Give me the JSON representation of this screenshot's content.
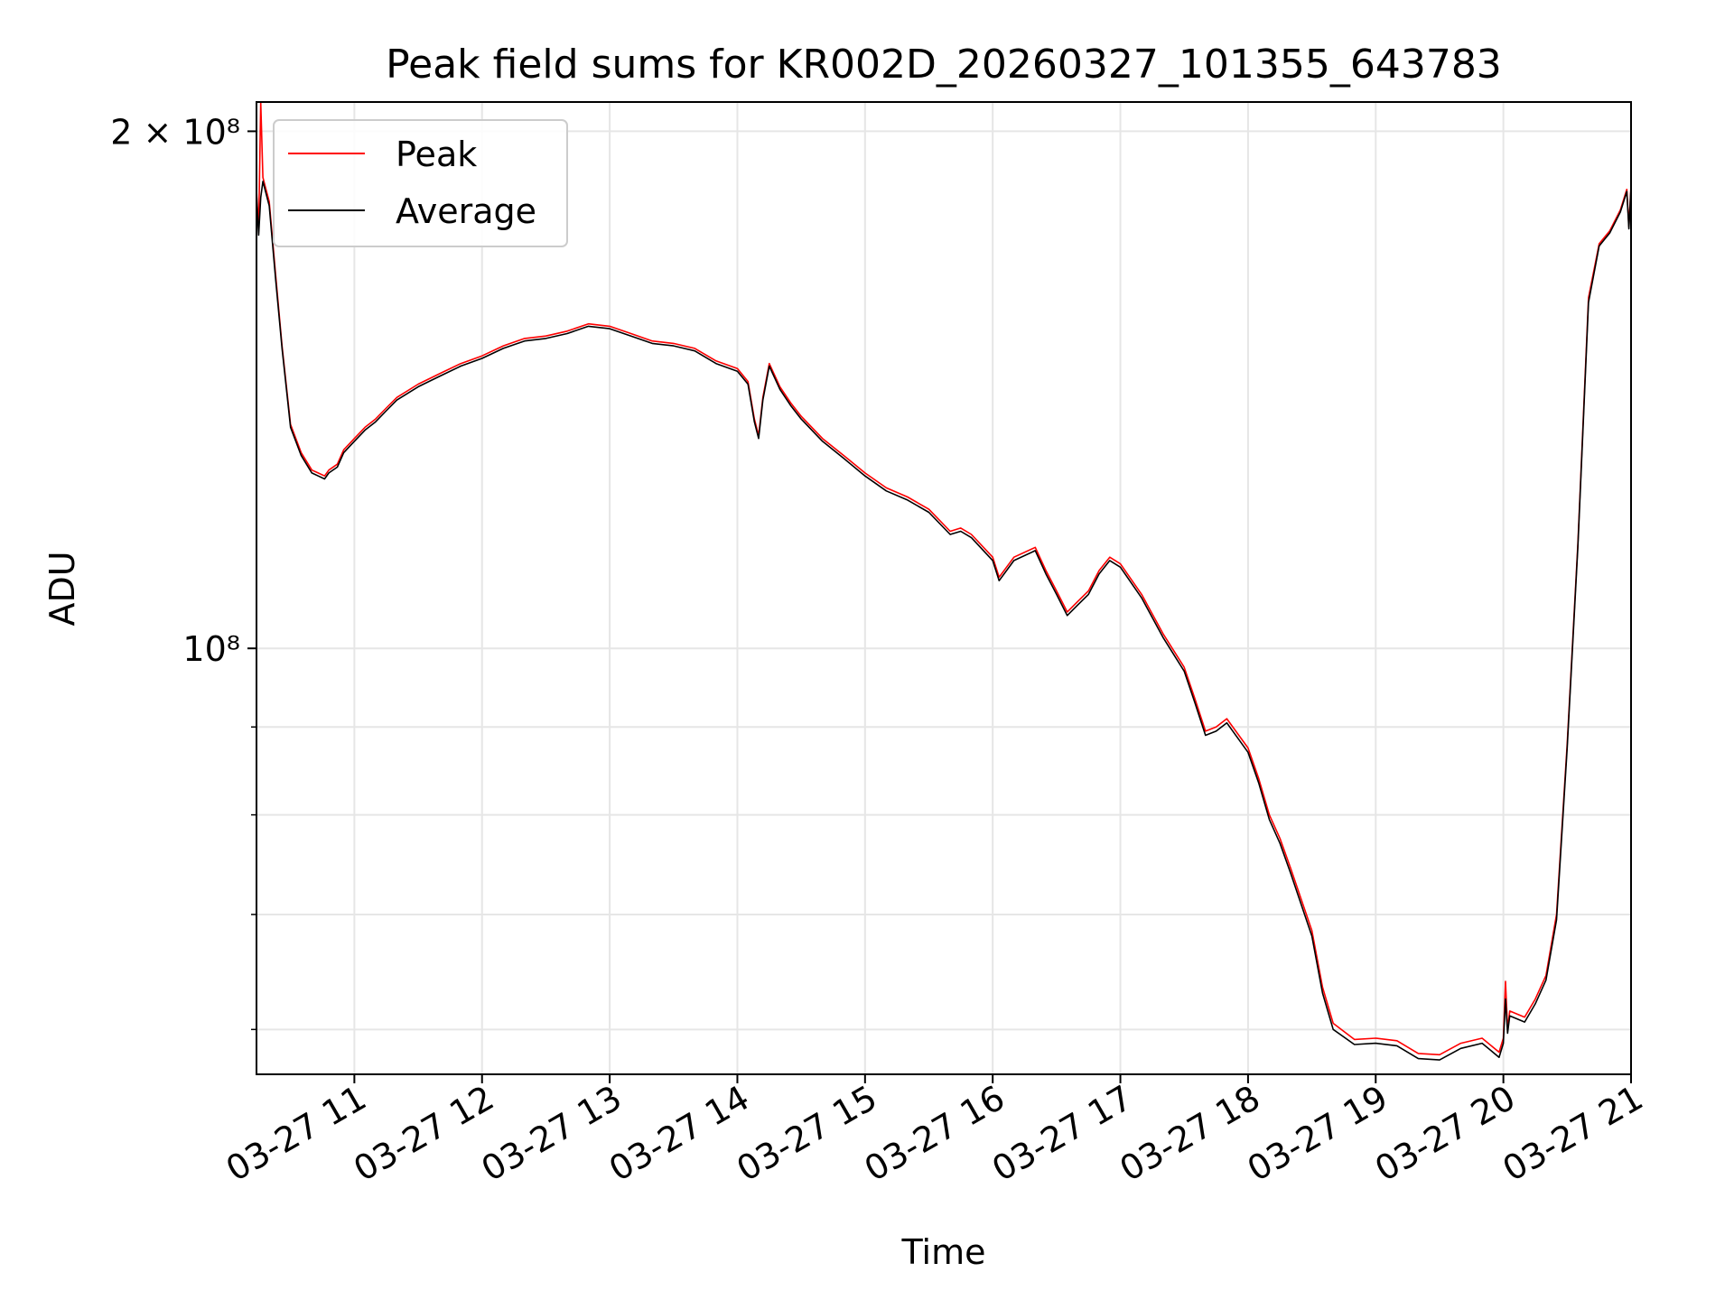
{
  "chart_data": {
    "type": "line",
    "title": "Peak field sums for KR002D_20260327_101355_643783",
    "xlabel": "Time",
    "ylabel": "ADU",
    "yscale": "log",
    "grid": true,
    "legend_placement": "top-left",
    "xlim": [
      "2026-03-27 10:14",
      "2026-03-27 21:00"
    ],
    "ylim": [
      56500000,
      208000000
    ],
    "x_ticks": [
      "03-27 11",
      "03-27 12",
      "03-27 13",
      "03-27 14",
      "03-27 15",
      "03-27 16",
      "03-27 17",
      "03-27 18",
      "03-27 19",
      "03-27 20",
      "03-27 21"
    ],
    "y_tick_labels": [
      {
        "value": 200000000,
        "label": "2 × 10⁸"
      },
      {
        "value": 100000000,
        "label": "10⁸"
      }
    ],
    "y_minor_ticks": [
      60000000,
      70000000,
      80000000,
      90000000
    ],
    "x": [
      "10:14",
      "10:15",
      "10:16",
      "10:17",
      "10:18",
      "10:20",
      "10:23",
      "10:26",
      "10:30",
      "10:35",
      "10:40",
      "10:43",
      "10:46",
      "10:48",
      "10:52",
      "10:55",
      "11:00",
      "11:05",
      "11:10",
      "11:15",
      "11:20",
      "11:30",
      "11:40",
      "11:50",
      "12:00",
      "12:10",
      "12:20",
      "12:30",
      "12:40",
      "12:50",
      "13:00",
      "13:10",
      "13:20",
      "13:30",
      "13:40",
      "13:50",
      "14:00",
      "14:05",
      "14:08",
      "14:10",
      "14:12",
      "14:15",
      "14:20",
      "14:25",
      "14:30",
      "14:40",
      "14:50",
      "15:00",
      "15:10",
      "15:20",
      "15:30",
      "15:40",
      "15:45",
      "15:50",
      "16:00",
      "16:03",
      "16:10",
      "16:20",
      "16:25",
      "16:30",
      "16:35",
      "16:40",
      "16:45",
      "16:50",
      "16:55",
      "17:00",
      "17:10",
      "17:20",
      "17:30",
      "17:35",
      "17:40",
      "17:45",
      "17:50",
      "18:00",
      "18:05",
      "18:10",
      "18:15",
      "18:20",
      "18:30",
      "18:35",
      "18:40",
      "18:50",
      "19:00",
      "19:10",
      "19:20",
      "19:30",
      "19:40",
      "19:50",
      "19:58",
      "20:00",
      "20:01",
      "20:02",
      "20:03",
      "20:10",
      "20:15",
      "20:20",
      "20:25",
      "20:30",
      "20:35",
      "20:40",
      "20:45",
      "20:50",
      "20:55",
      "20:58",
      "20:59",
      "21:00"
    ],
    "series": [
      {
        "name": "Peak",
        "color": "#ff0000",
        "values": [
          185000000,
          175000000,
          208000000,
          188000000,
          186000000,
          182000000,
          165000000,
          150000000,
          135000000,
          130000000,
          127000000,
          126500000,
          126000000,
          127000000,
          128000000,
          130500000,
          132500000,
          134500000,
          136000000,
          138000000,
          140000000,
          142500000,
          144500000,
          146500000,
          148000000,
          150000000,
          151500000,
          152000000,
          153000000,
          154500000,
          154000000,
          152500000,
          151000000,
          150500000,
          149500000,
          147000000,
          145500000,
          143000000,
          136000000,
          133000000,
          140000000,
          146500000,
          142000000,
          139000000,
          136500000,
          132500000,
          129500000,
          126500000,
          124000000,
          122500000,
          120500000,
          117000000,
          117500000,
          116500000,
          113000000,
          110000000,
          113000000,
          114500000,
          111000000,
          108000000,
          105000000,
          106500000,
          108000000,
          111000000,
          113000000,
          112000000,
          107500000,
          102000000,
          97500000,
          93500000,
          89500000,
          90000000,
          91000000,
          87500000,
          84000000,
          80000000,
          77500000,
          74500000,
          68500000,
          63500000,
          60500000,
          59200000,
          59300000,
          59100000,
          58100000,
          58000000,
          58900000,
          59300000,
          58200000,
          59300000,
          64000000,
          60000000,
          61500000,
          61000000,
          62500000,
          64500000,
          70000000,
          88000000,
          115000000,
          160000000,
          172000000,
          175000000,
          180000000,
          185000000,
          176000000,
          186000000
        ]
      },
      {
        "name": "Average",
        "color": "#000000",
        "values": [
          184000000,
          174000000,
          183000000,
          187000000,
          185000000,
          181000000,
          164000000,
          149500000,
          134500000,
          129500000,
          126500000,
          126000000,
          125500000,
          126500000,
          127500000,
          130000000,
          132000000,
          134000000,
          135500000,
          137500000,
          139500000,
          142000000,
          144000000,
          146000000,
          147500000,
          149500000,
          151000000,
          151500000,
          152500000,
          154000000,
          153500000,
          152000000,
          150500000,
          150000000,
          149000000,
          146500000,
          145000000,
          142500000,
          135500000,
          132500000,
          139500000,
          146000000,
          141500000,
          138500000,
          136000000,
          132000000,
          129000000,
          126000000,
          123500000,
          122000000,
          120000000,
          116500000,
          117000000,
          116000000,
          112500000,
          109500000,
          112500000,
          114000000,
          110500000,
          107500000,
          104500000,
          106000000,
          107500000,
          110500000,
          112500000,
          111500000,
          107000000,
          101500000,
          97000000,
          93000000,
          89000000,
          89500000,
          90500000,
          87000000,
          83500000,
          79500000,
          77000000,
          74000000,
          68000000,
          63000000,
          60000000,
          58800000,
          58900000,
          58700000,
          57700000,
          57600000,
          58500000,
          58900000,
          57800000,
          58900000,
          62500000,
          59700000,
          61100000,
          60600000,
          62100000,
          64100000,
          69500000,
          87500000,
          114500000,
          159000000,
          171500000,
          174500000,
          179500000,
          184500000,
          175500000,
          185500000
        ]
      }
    ]
  }
}
